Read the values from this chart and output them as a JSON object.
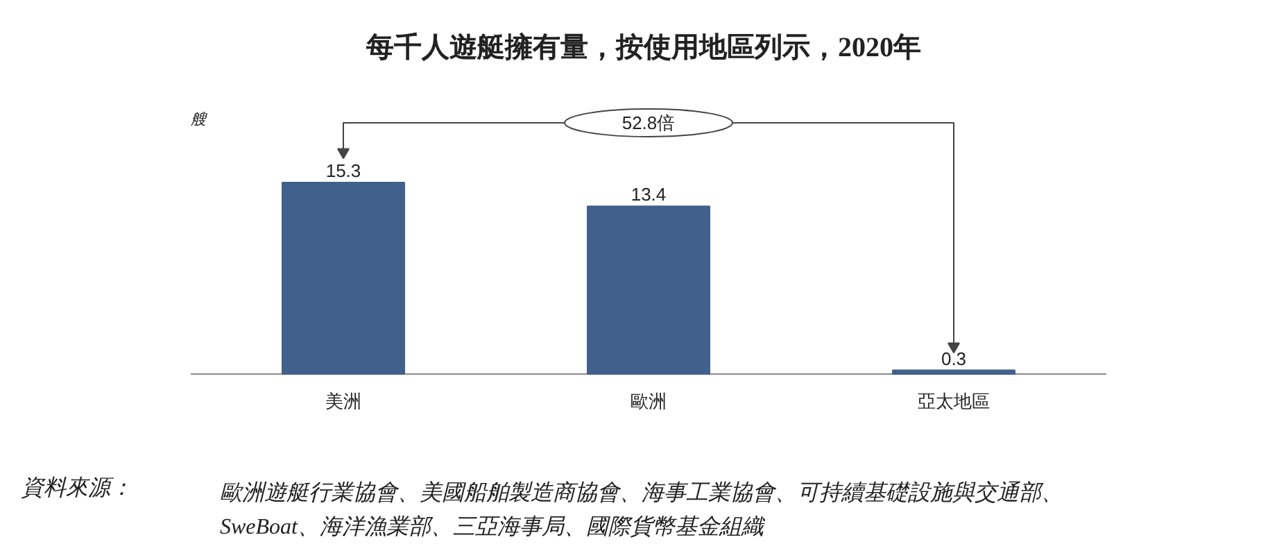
{
  "chart_data": {
    "type": "bar",
    "title": "每千人遊艇擁有量，按使用地區列示，2020年",
    "ylabel": "艘",
    "categories": [
      "美洲",
      "歐洲",
      "亞太地區"
    ],
    "values": [
      15.3,
      13.4,
      0.3
    ],
    "color": "#41618c",
    "data_labels": true,
    "grid": false,
    "tick_labels": "x",
    "annotations": [
      "52.8倍",
      "資料來源：",
      "歐洲遊艇行業協會、美國船舶製造商協會、海事工業協會、可持續基礎設施與交通部、\nSweBoat、海洋漁業部、三亞海事局、國際貨幣基金組織"
    ]
  }
}
